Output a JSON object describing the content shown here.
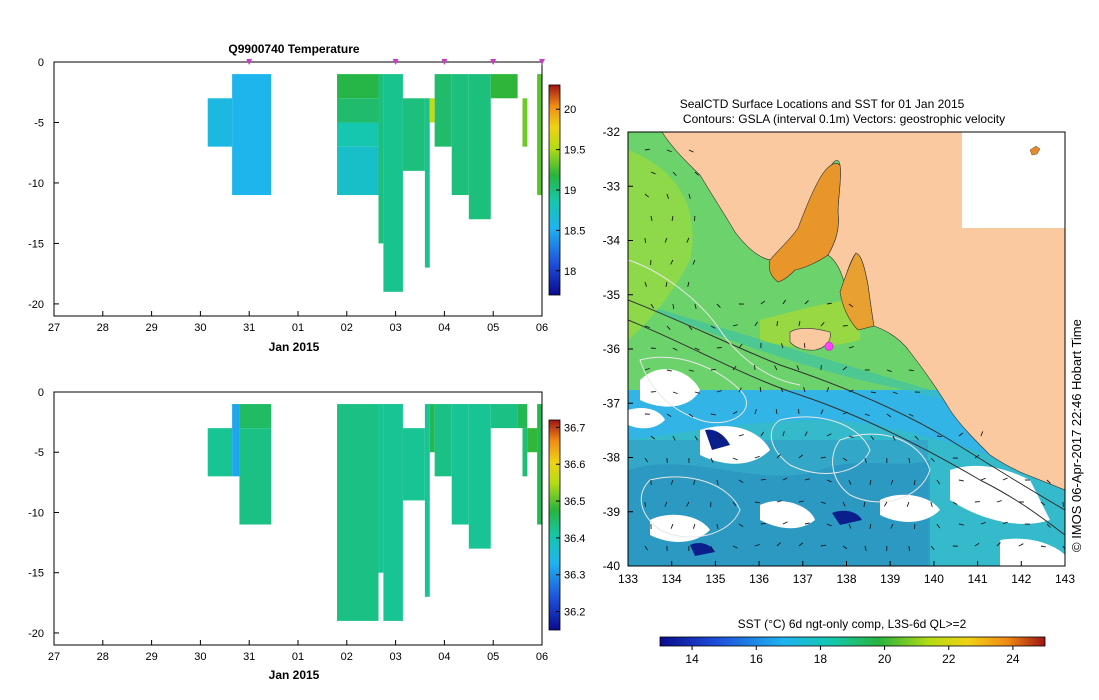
{
  "colors": {
    "land": "#fac9a0",
    "vector_color": "#1a1a1a",
    "contour_light": "#e8e8e8",
    "contour_dark": "#303030",
    "marker": "#c83cc8",
    "highlight": "#ff44ff"
  },
  "chart_data": [
    {
      "id": "temperature",
      "type": "heatmap",
      "title": "Q9900740  Temperature",
      "xlabel": "Jan 2015",
      "x_tick_labels": [
        "27",
        "28",
        "29",
        "30",
        "31",
        "01",
        "02",
        "03",
        "04",
        "05",
        "06"
      ],
      "x_tick_values": [
        0,
        1,
        2,
        3,
        4,
        5,
        6,
        7,
        8,
        9,
        10
      ],
      "xlim": [
        0,
        10
      ],
      "ylim": [
        -21,
        0
      ],
      "y_ticks": [
        0,
        -5,
        -10,
        -15,
        -20
      ],
      "colorbar": {
        "min": 17.7,
        "max": 20.3,
        "ticks": [
          18,
          18.5,
          19,
          19.5,
          20
        ],
        "tick_labels": [
          "18",
          "18.5",
          "19",
          "19.5",
          "20"
        ]
      },
      "profile_markers": [
        4,
        7,
        8,
        9,
        10
      ],
      "cells": [
        [
          3.15,
          3.65,
          -3,
          -7,
          18.6
        ],
        [
          3.65,
          4.45,
          -1,
          -11,
          18.55
        ],
        [
          5.8,
          6.65,
          -1,
          -3,
          19.15
        ],
        [
          5.8,
          6.65,
          -3,
          -5,
          19.05
        ],
        [
          5.8,
          6.65,
          -5,
          -7,
          18.85
        ],
        [
          5.8,
          6.65,
          -7,
          -11,
          18.72
        ],
        [
          6.65,
          6.75,
          -1,
          -15,
          19.0
        ],
        [
          6.75,
          7.15,
          -1,
          -19,
          18.95
        ],
        [
          7.15,
          7.6,
          -3,
          -9,
          19.0
        ],
        [
          7.6,
          7.7,
          -3,
          -17,
          18.95
        ],
        [
          7.7,
          7.8,
          -3,
          -5,
          19.6
        ],
        [
          7.8,
          8.15,
          -1,
          -7,
          19.05
        ],
        [
          8.15,
          8.5,
          -1,
          -11,
          19.0
        ],
        [
          8.5,
          8.95,
          -1,
          -13,
          19.0
        ],
        [
          8.95,
          9.5,
          -1,
          -3,
          19.2
        ],
        [
          9.6,
          9.7,
          -3,
          -7,
          19.35
        ],
        [
          9.9,
          10.0,
          -1,
          -11,
          19.3
        ]
      ]
    },
    {
      "id": "salinity",
      "type": "heatmap",
      "title": "",
      "xlabel": "Jan 2015",
      "x_tick_labels": [
        "27",
        "28",
        "29",
        "30",
        "31",
        "01",
        "02",
        "03",
        "04",
        "05",
        "06"
      ],
      "x_tick_values": [
        0,
        1,
        2,
        3,
        4,
        5,
        6,
        7,
        8,
        9,
        10
      ],
      "xlim": [
        0,
        10
      ],
      "ylim": [
        -21,
        0
      ],
      "y_ticks": [
        0,
        -5,
        -10,
        -15,
        -20
      ],
      "colorbar": {
        "min": 36.15,
        "max": 36.72,
        "ticks": [
          36.2,
          36.3,
          36.4,
          36.5,
          36.6,
          36.7
        ],
        "tick_labels": [
          "36.2",
          "36.3",
          "36.4",
          "36.5",
          "36.6",
          "36.7"
        ]
      },
      "cells": [
        [
          3.15,
          3.65,
          -3,
          -7,
          36.42
        ],
        [
          3.65,
          3.8,
          -1,
          -7,
          36.32
        ],
        [
          3.8,
          4.45,
          -1,
          -3,
          36.45
        ],
        [
          3.8,
          4.45,
          -3,
          -11,
          36.43
        ],
        [
          5.8,
          6.65,
          -1,
          -19,
          36.43
        ],
        [
          6.65,
          6.75,
          -1,
          -15,
          36.42
        ],
        [
          6.75,
          7.15,
          -1,
          -19,
          36.42
        ],
        [
          7.15,
          7.6,
          -3,
          -9,
          36.42
        ],
        [
          7.6,
          7.7,
          -1,
          -17,
          36.42
        ],
        [
          7.7,
          7.8,
          -1,
          -5,
          36.46
        ],
        [
          7.8,
          8.15,
          -1,
          -7,
          36.43
        ],
        [
          8.15,
          8.5,
          -1,
          -11,
          36.42
        ],
        [
          8.5,
          8.95,
          -1,
          -13,
          36.42
        ],
        [
          8.95,
          9.5,
          -1,
          -3,
          36.43
        ],
        [
          9.5,
          9.7,
          -1,
          -3,
          36.46
        ],
        [
          9.6,
          9.7,
          -3,
          -7,
          36.44
        ],
        [
          9.7,
          9.9,
          -3,
          -5,
          36.48
        ],
        [
          9.9,
          10.0,
          -1,
          -11,
          36.46
        ]
      ]
    },
    {
      "id": "sst_map",
      "type": "heatmap",
      "title": "SealCTD Surface Locations and SST for 01 Jan 2015",
      "subtitle": "Contours: GSLA (interval 0.1m) Vectors: geostrophic velocity",
      "xlabel": "",
      "ylabel": "",
      "xlim": [
        133,
        143
      ],
      "ylim": [
        -40,
        -32
      ],
      "x_ticks": [
        133,
        134,
        135,
        136,
        137,
        138,
        139,
        140,
        141,
        142,
        143
      ],
      "x_tick_labels": [
        "133",
        "134",
        "135",
        "136",
        "137",
        "138",
        "139",
        "140",
        "141",
        "142",
        "143"
      ],
      "y_ticks": [
        -32,
        -33,
        -34,
        -35,
        -36,
        -37,
        -38,
        -39,
        -40
      ],
      "y_tick_labels": [
        "-32",
        "-33",
        "-34",
        "-35",
        "-36",
        "-37",
        "-38",
        "-39",
        "-40"
      ],
      "colorbar": {
        "label": "SST (°C) 6d ngt-only comp, L3S-6d QL>=2",
        "min": 13,
        "max": 25,
        "ticks": [
          14,
          16,
          18,
          20,
          22,
          24
        ],
        "tick_labels": [
          "14",
          "16",
          "18",
          "20",
          "22",
          "24"
        ]
      },
      "seal_location": [
        137.6,
        -35.95
      ],
      "credit": "© IMOS 06-Apr-2017 22:46 Hobart Time"
    }
  ]
}
